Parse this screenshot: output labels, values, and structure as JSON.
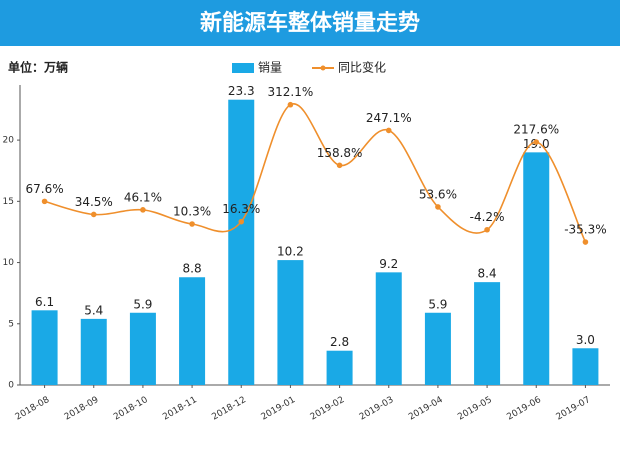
{
  "chart_data": {
    "type": "bar",
    "title": "新能源车整体销量走势",
    "unit_label": "单位：万辆",
    "categories": [
      "2018-08",
      "2018-09",
      "2018-10",
      "2018-11",
      "2018-12",
      "2019-01",
      "2019-02",
      "2019-03",
      "2019-04",
      "2019-05",
      "2019-06",
      "2019-07"
    ],
    "series": [
      {
        "name": "销量",
        "type": "bar",
        "color": "#1aa9e6",
        "values": [
          6.1,
          5.4,
          5.9,
          8.8,
          23.3,
          10.2,
          2.8,
          9.2,
          5.9,
          8.4,
          19.0,
          3.0
        ],
        "value_labels": [
          "6.1",
          "5.4",
          "5.9",
          "8.8",
          "23.3",
          "10.2",
          "2.8",
          "9.2",
          "5.9",
          "8.4",
          "19.0",
          "3.0"
        ]
      },
      {
        "name": "同比变化",
        "type": "line",
        "axis": "y2",
        "color": "#ef8f2c",
        "values": [
          67.6,
          34.5,
          46.1,
          10.3,
          16.3,
          312.1,
          158.8,
          247.1,
          53.6,
          -4.2,
          217.6,
          -35.3
        ],
        "value_labels": [
          "67.6%",
          "34.5%",
          "46.1%",
          "10.3%",
          "16.3%",
          "312.1%",
          "158.8%",
          "247.1%",
          "53.6%",
          "-4.2%",
          "217.6%",
          "-35.3%"
        ]
      }
    ],
    "ylim": [
      0,
      24.5
    ],
    "yticks": [
      0,
      5,
      10,
      15,
      20
    ],
    "y2lim": [
      -397,
      362
    ]
  }
}
